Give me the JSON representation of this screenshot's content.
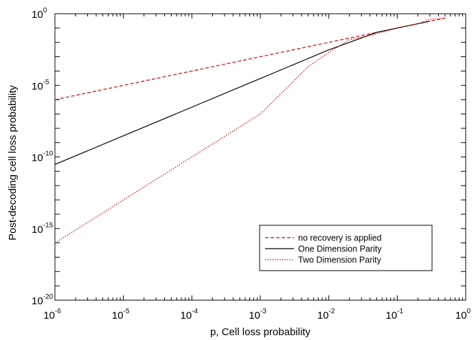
{
  "chart_data": {
    "type": "line",
    "xlabel": "p, Cell loss probability",
    "ylabel": "Post-decoding cell loss probability",
    "xscale": "log",
    "yscale": "log",
    "xlim": [
      1e-06,
      1
    ],
    "ylim": [
      1e-20,
      1
    ],
    "x_ticks": [
      {
        "base": "10",
        "exp": "-6"
      },
      {
        "base": "10",
        "exp": "-5"
      },
      {
        "base": "10",
        "exp": "-4"
      },
      {
        "base": "10",
        "exp": "-3"
      },
      {
        "base": "10",
        "exp": "-2"
      },
      {
        "base": "10",
        "exp": "-1"
      },
      {
        "base": "10",
        "exp": "0"
      }
    ],
    "y_ticks": [
      {
        "base": "10",
        "exp": "-20"
      },
      {
        "base": "10",
        "exp": "-15"
      },
      {
        "base": "10",
        "exp": "-10"
      },
      {
        "base": "10",
        "exp": "-5"
      },
      {
        "base": "10",
        "exp": "0"
      }
    ],
    "grid": false,
    "legend_position": "bottom-right",
    "series": [
      {
        "name": "no recovery is applied",
        "color": "#d40000",
        "style": "dashed",
        "x": [
          1e-06,
          1e-05,
          0.0001,
          0.001,
          0.01,
          0.1,
          0.3,
          0.5
        ],
        "y": [
          1e-06,
          1e-05,
          0.0001,
          0.001,
          0.01,
          0.1,
          0.3,
          0.5
        ]
      },
      {
        "name": "One Dimension Parity",
        "color": "#000000",
        "style": "solid",
        "x": [
          1e-06,
          1e-05,
          0.0001,
          0.001,
          0.01,
          0.02,
          0.05,
          0.1,
          0.2,
          0.3
        ],
        "y": [
          3e-11,
          3e-09,
          3e-07,
          3e-05,
          0.003,
          0.01,
          0.05,
          0.1,
          0.2,
          0.3
        ]
      },
      {
        "name": "Two Dimension Parity",
        "color": "#d40000",
        "style": "dotted",
        "x": [
          1e-06,
          1e-05,
          0.0001,
          0.001,
          0.005,
          0.01,
          0.02,
          0.05,
          0.1,
          0.2,
          0.3,
          0.5
        ],
        "y": [
          1e-16,
          1e-13,
          1e-10,
          1e-07,
          0.0002,
          0.002,
          0.015,
          0.04,
          0.1,
          0.2,
          0.4,
          0.5
        ]
      }
    ]
  }
}
